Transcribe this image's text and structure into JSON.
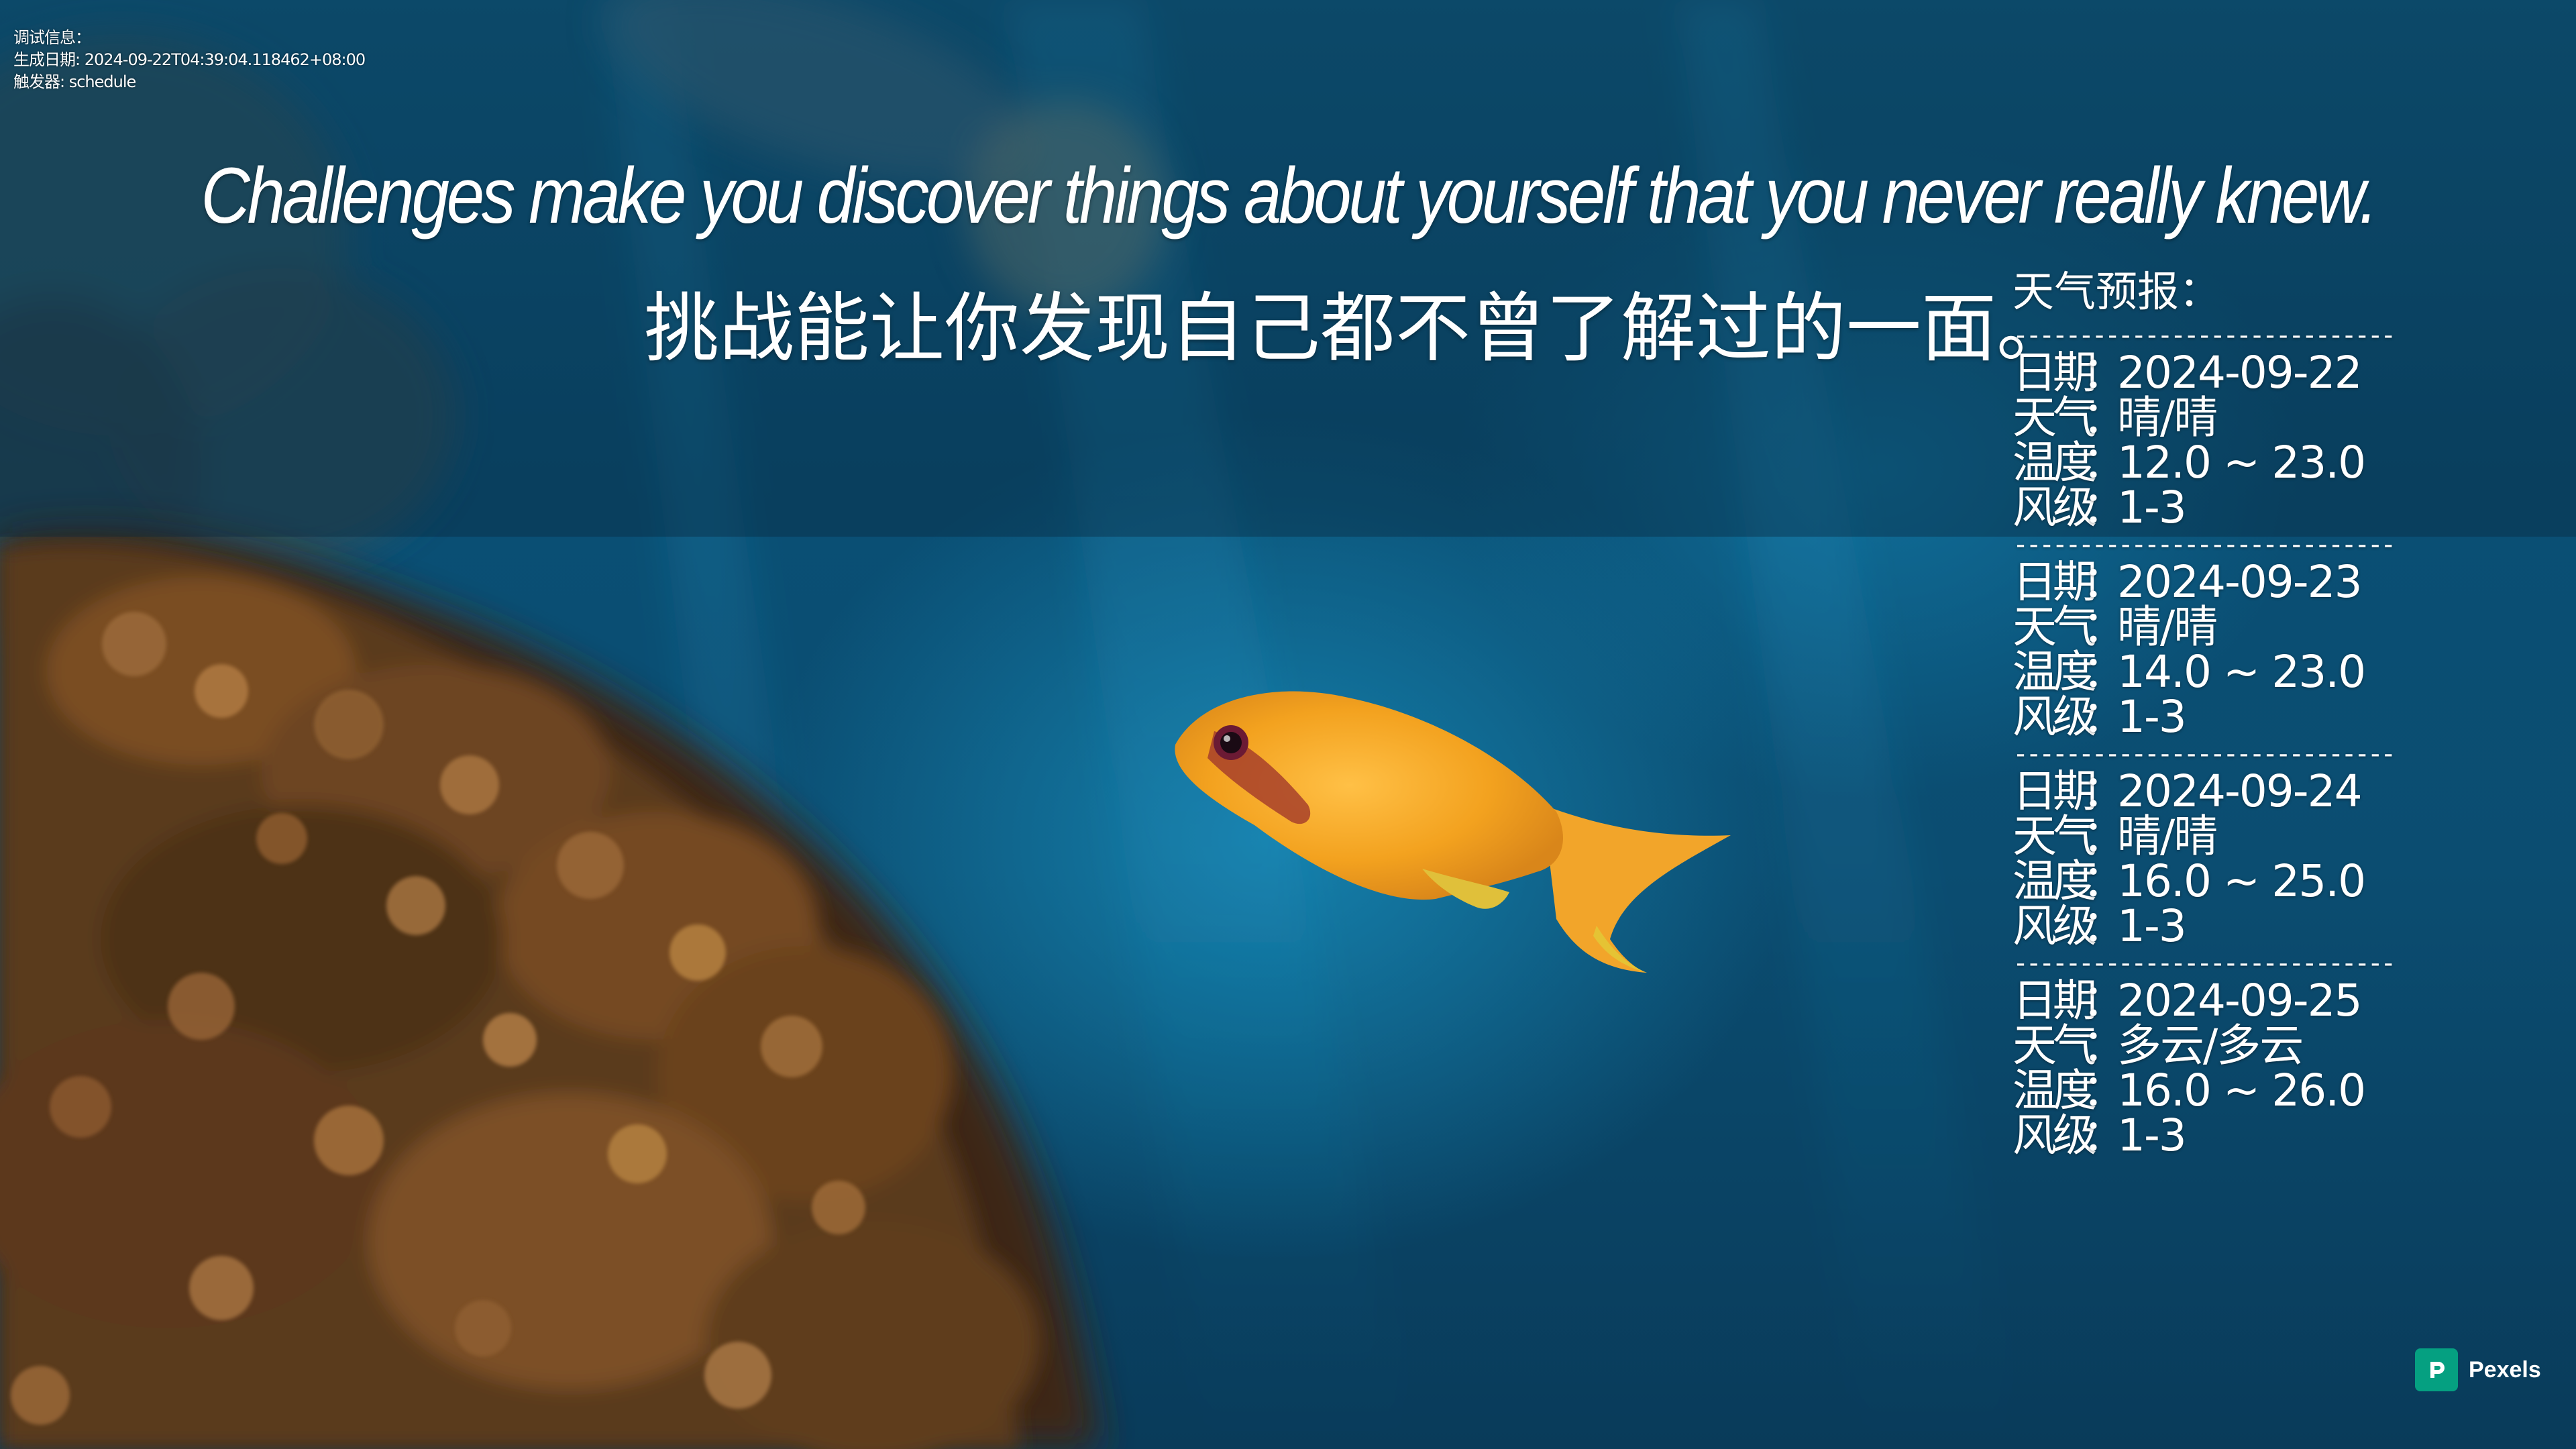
{
  "debug": {
    "line1": "调试信息：",
    "line2": "生成日期: 2024-09-22T04:39:04.118462+08:00",
    "line3": "触发器: schedule"
  },
  "quote": {
    "english": "Challenges make you discover things about yourself that you never really knew.",
    "chinese": "挑战能让你发现自己都不曾了解过的一面。"
  },
  "weather": {
    "title": "天气预报：",
    "divider": "-----------------------------",
    "labels": {
      "date": "日期",
      "weather": "天气",
      "temperature": "温度",
      "wind": "风级",
      "separator": "："
    },
    "days": [
      {
        "date": "2024-09-22",
        "weather": "晴/晴",
        "temperature": "12.0 ~ 23.0",
        "wind": "1-3"
      },
      {
        "date": "2024-09-23",
        "weather": "晴/晴",
        "temperature": "14.0 ~ 23.0",
        "wind": "1-3"
      },
      {
        "date": "2024-09-24",
        "weather": "晴/晴",
        "temperature": "16.0 ~ 25.0",
        "wind": "1-3"
      },
      {
        "date": "2024-09-25",
        "weather": "多云/多云",
        "temperature": "16.0 ~ 26.0",
        "wind": "1-3"
      }
    ]
  },
  "attribution": {
    "label": "Pexels",
    "logo_color": "#05a081"
  },
  "colors": {
    "water": "#0b5a82",
    "fish": "#f3a21f",
    "coral": "#7a4a22"
  }
}
